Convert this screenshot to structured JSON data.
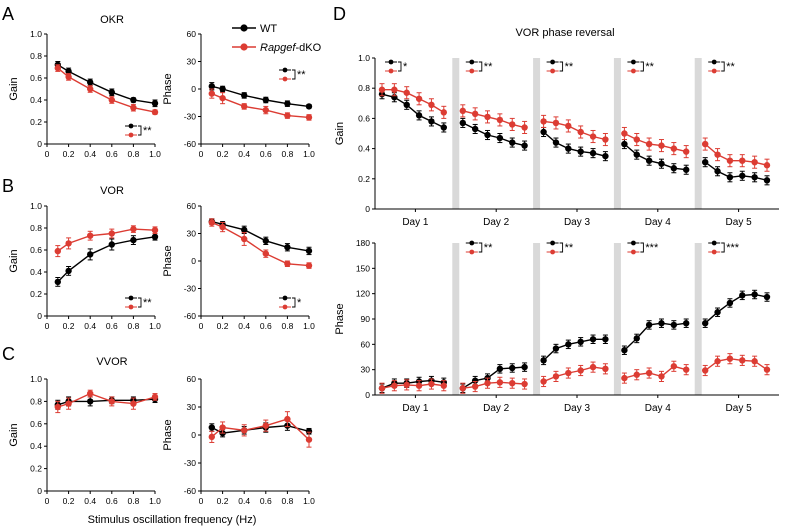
{
  "chart_data": [
    {
      "id": "okr_gain",
      "type": "line",
      "panel_letter": "A",
      "title": "OKR",
      "xlabel": "",
      "ylabel": "Gain",
      "xlim": [
        0,
        1
      ],
      "ylim": [
        0,
        1
      ],
      "xticks": [
        "0",
        "0.2",
        "0.4",
        "0.6",
        "0.8",
        "1.0"
      ],
      "yticks": [
        "0",
        "0.2",
        "0.4",
        "0.6",
        "0.8",
        "1.0"
      ],
      "x": [
        0.1,
        0.2,
        0.4,
        0.6,
        0.8,
        1.0
      ],
      "series": [
        {
          "name": "WT",
          "values": [
            0.72,
            0.66,
            0.56,
            0.47,
            0.4,
            0.37
          ],
          "err": [
            0.03,
            0.03,
            0.03,
            0.03,
            0.02,
            0.03
          ]
        },
        {
          "name": "Rapgef-dKO",
          "values": [
            0.69,
            0.61,
            0.5,
            0.4,
            0.33,
            0.29
          ],
          "err": [
            0.03,
            0.03,
            0.03,
            0.03,
            0.03,
            0.02
          ]
        }
      ],
      "significance": "**"
    },
    {
      "id": "okr_phase",
      "type": "line",
      "title": "",
      "xlabel": "",
      "ylabel": "Phase",
      "xlim": [
        0,
        1
      ],
      "ylim": [
        -60,
        60
      ],
      "xticks": [
        "0",
        "0.2",
        "0.4",
        "0.6",
        "0.8",
        "1.0"
      ],
      "yticks": [
        "-60",
        "-30",
        "0",
        "30",
        "60"
      ],
      "x": [
        0.1,
        0.2,
        0.4,
        0.6,
        0.8,
        1.0
      ],
      "series": [
        {
          "name": "WT",
          "values": [
            3,
            0,
            -7,
            -12,
            -16,
            -19
          ],
          "err": [
            4,
            3,
            3,
            3,
            3,
            2
          ]
        },
        {
          "name": "Rapgef-dKO",
          "values": [
            -5,
            -10,
            -19,
            -23,
            -29,
            -31
          ],
          "err": [
            5,
            6,
            3,
            4,
            3,
            3
          ]
        }
      ],
      "significance": "**"
    },
    {
      "id": "vor_gain",
      "type": "line",
      "panel_letter": "B",
      "title": "VOR",
      "xlabel": "",
      "ylabel": "Gain",
      "xlim": [
        0,
        1
      ],
      "ylim": [
        0,
        1
      ],
      "xticks": [
        "0",
        "0.2",
        "0.4",
        "0.6",
        "0.8",
        "1.0"
      ],
      "yticks": [
        "0",
        "0.2",
        "0.4",
        "0.6",
        "0.8",
        "1.0"
      ],
      "x": [
        0.1,
        0.2,
        0.4,
        0.6,
        0.8,
        1.0
      ],
      "series": [
        {
          "name": "WT",
          "values": [
            0.31,
            0.41,
            0.56,
            0.65,
            0.69,
            0.72
          ],
          "err": [
            0.04,
            0.04,
            0.05,
            0.05,
            0.04,
            0.03
          ]
        },
        {
          "name": "Rapgef-dKO",
          "values": [
            0.59,
            0.66,
            0.73,
            0.75,
            0.79,
            0.78
          ],
          "err": [
            0.05,
            0.05,
            0.04,
            0.04,
            0.03,
            0.03
          ]
        }
      ],
      "significance": "**"
    },
    {
      "id": "vor_phase",
      "type": "line",
      "title": "",
      "xlabel": "",
      "ylabel": "Phase",
      "xlim": [
        0,
        1
      ],
      "ylim": [
        -60,
        60
      ],
      "xticks": [
        "0",
        "0.2",
        "0.4",
        "0.6",
        "0.8",
        "1.0"
      ],
      "yticks": [
        "-60",
        "-30",
        "0",
        "30",
        "60"
      ],
      "x": [
        0.1,
        0.2,
        0.4,
        0.6,
        0.8,
        1.0
      ],
      "series": [
        {
          "name": "WT",
          "values": [
            43,
            40,
            34,
            22,
            15,
            11
          ],
          "err": [
            3,
            3,
            4,
            4,
            4,
            4
          ]
        },
        {
          "name": "Rapgef-dKO",
          "values": [
            42,
            37,
            24,
            8,
            -3,
            -5
          ],
          "err": [
            4,
            5,
            7,
            4,
            3,
            3
          ]
        }
      ],
      "significance": "*"
    },
    {
      "id": "vvor_gain",
      "type": "line",
      "panel_letter": "C",
      "title": "VVOR",
      "xlabel": "",
      "ylabel": "Gain",
      "xlim": [
        0,
        1
      ],
      "ylim": [
        0,
        1
      ],
      "xticks": [
        "0",
        "0.2",
        "0.4",
        "0.6",
        "0.8",
        "1.0"
      ],
      "yticks": [
        "0",
        "0.2",
        "0.4",
        "0.6",
        "0.8",
        "1.0"
      ],
      "x": [
        0.1,
        0.2,
        0.4,
        0.6,
        0.8,
        1.0
      ],
      "series": [
        {
          "name": "WT",
          "values": [
            0.77,
            0.8,
            0.8,
            0.81,
            0.81,
            0.82
          ],
          "err": [
            0.04,
            0.04,
            0.04,
            0.03,
            0.03,
            0.03
          ]
        },
        {
          "name": "Rapgef-dKO",
          "values": [
            0.75,
            0.78,
            0.87,
            0.8,
            0.78,
            0.84
          ],
          "err": [
            0.05,
            0.05,
            0.03,
            0.04,
            0.05,
            0.03
          ]
        }
      ]
    },
    {
      "id": "vvor_phase",
      "type": "line",
      "title": "",
      "xlabel": "",
      "ylabel": "Phase",
      "xlim": [
        0,
        1
      ],
      "ylim": [
        -60,
        60
      ],
      "xticks": [
        "0",
        "0.2",
        "0.4",
        "0.6",
        "0.8",
        "1.0"
      ],
      "yticks": [
        "-60",
        "-30",
        "0",
        "30",
        "60"
      ],
      "x": [
        0.1,
        0.2,
        0.4,
        0.6,
        0.8,
        1.0
      ],
      "series": [
        {
          "name": "WT",
          "values": [
            8,
            2,
            5,
            8,
            10,
            4
          ],
          "err": [
            4,
            4,
            4,
            5,
            5,
            3
          ]
        },
        {
          "name": "Rapgef-dKO",
          "values": [
            -2,
            8,
            5,
            10,
            17,
            -5
          ],
          "err": [
            6,
            6,
            6,
            6,
            8,
            8
          ]
        }
      ]
    },
    {
      "id": "reversal_gain",
      "type": "line",
      "panel_letter": "D",
      "title": "VOR phase reversal",
      "xlabel": "",
      "ylabel": "Gain",
      "ylim": [
        0,
        1
      ],
      "yticks": [
        "0",
        "0.2",
        "0.4",
        "0.6",
        "0.8",
        "1.0"
      ],
      "days": [
        "Day 1",
        "Day 2",
        "Day 3",
        "Day 4",
        "Day 5"
      ],
      "points_per_day": 6,
      "series": [
        {
          "name": "WT",
          "days": [
            [
              0.76,
              0.74,
              0.69,
              0.62,
              0.58,
              0.54
            ],
            [
              0.57,
              0.53,
              0.49,
              0.47,
              0.44,
              0.42
            ],
            [
              0.51,
              0.44,
              0.4,
              0.38,
              0.37,
              0.35
            ],
            [
              0.43,
              0.36,
              0.32,
              0.3,
              0.27,
              0.26
            ],
            [
              0.31,
              0.25,
              0.21,
              0.22,
              0.21,
              0.19
            ]
          ],
          "err": 0.03
        },
        {
          "name": "Rapgef-dKO",
          "days": [
            [
              0.79,
              0.79,
              0.77,
              0.73,
              0.69,
              0.64
            ],
            [
              0.65,
              0.63,
              0.61,
              0.59,
              0.56,
              0.54
            ],
            [
              0.58,
              0.57,
              0.55,
              0.51,
              0.48,
              0.46
            ],
            [
              0.5,
              0.46,
              0.43,
              0.42,
              0.4,
              0.38
            ],
            [
              0.43,
              0.36,
              0.32,
              0.32,
              0.31,
              0.29
            ]
          ],
          "err": 0.04
        }
      ],
      "significance": [
        "*",
        "**",
        "**",
        "**",
        "**"
      ]
    },
    {
      "id": "reversal_phase",
      "type": "line",
      "title": "",
      "xlabel": "",
      "ylabel": "Phase",
      "ylim": [
        0,
        180
      ],
      "yticks": [
        "0",
        "30",
        "60",
        "90",
        "120",
        "150",
        "180"
      ],
      "days": [
        "Day 1",
        "Day 2",
        "Day 3",
        "Day 4",
        "Day 5"
      ],
      "points_per_day": 6,
      "series": [
        {
          "name": "WT",
          "days": [
            [
              8,
              14,
              14,
              16,
              17,
              15
            ],
            [
              8,
              17,
              20,
              31,
              32,
              33
            ],
            [
              41,
              55,
              60,
              63,
              66,
              66
            ],
            [
              53,
              67,
              83,
              85,
              83,
              85
            ],
            [
              85,
              98,
              109,
              118,
              119,
              116
            ]
          ],
          "err": 5
        },
        {
          "name": "Rapgef-dKO",
          "days": [
            [
              8,
              11,
              12,
              11,
              13,
              11
            ],
            [
              8,
              10,
              14,
              15,
              14,
              13
            ],
            [
              16,
              22,
              26,
              29,
              33,
              31
            ],
            [
              20,
              24,
              26,
              22,
              34,
              30
            ],
            [
              29,
              40,
              43,
              41,
              40,
              30
            ]
          ],
          "err": 6
        }
      ],
      "significance": [
        "",
        "**",
        "**",
        "***",
        "***"
      ]
    }
  ],
  "legend": {
    "wt_label": "WT",
    "dko_label_italic": "Rapgef",
    "dko_label_suffix": "-dKO"
  },
  "shared_xlabel": "Stimulus oscillation frequency (Hz)",
  "colors": {
    "wt": "#000000",
    "dko": "#dc3c33",
    "gap": "#d9d9d9"
  }
}
